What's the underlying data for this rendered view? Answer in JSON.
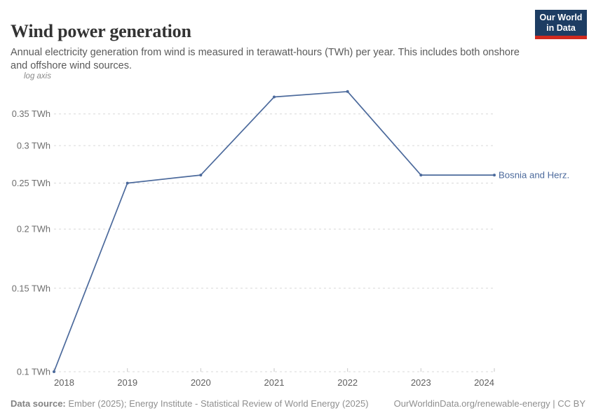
{
  "header": {
    "title": "Wind power generation",
    "subtitle": "Annual electricity generation from wind is measured in terawatt-hours (TWh) per year. This includes both onshore and offshore wind sources.",
    "logo": {
      "line1": "Our World",
      "line2": "in Data"
    }
  },
  "chart_data": {
    "type": "line",
    "title": "Wind power generation",
    "axis_scale_note": "log axis",
    "unit": "TWh",
    "scale": "log",
    "grid": true,
    "x": [
      2018,
      2019,
      2020,
      2021,
      2022,
      2023,
      2024
    ],
    "series": [
      {
        "name": "Bosnia and Herz.",
        "values": [
          0.1,
          0.25,
          0.26,
          0.38,
          0.39,
          0.26,
          0.26
        ]
      }
    ],
    "yticks": [
      0.1,
      0.15,
      0.2,
      0.25,
      0.3,
      0.35
    ],
    "ytick_labels": [
      "0.1 TWh",
      "0.15 TWh",
      "0.2 TWh",
      "0.25 TWh",
      "0.3 TWh",
      "0.35 TWh"
    ],
    "ylim": [
      0.1,
      0.4
    ],
    "legend_position": "end-of-line-label",
    "line_color": "#4C6A9C"
  },
  "footer": {
    "source_label": "Data source:",
    "source_text": " Ember (2025); Energy Institute - Statistical Review of World Energy (2025)",
    "link": "OurWorldinData.org/renewable-energy",
    "license": " | CC BY"
  }
}
